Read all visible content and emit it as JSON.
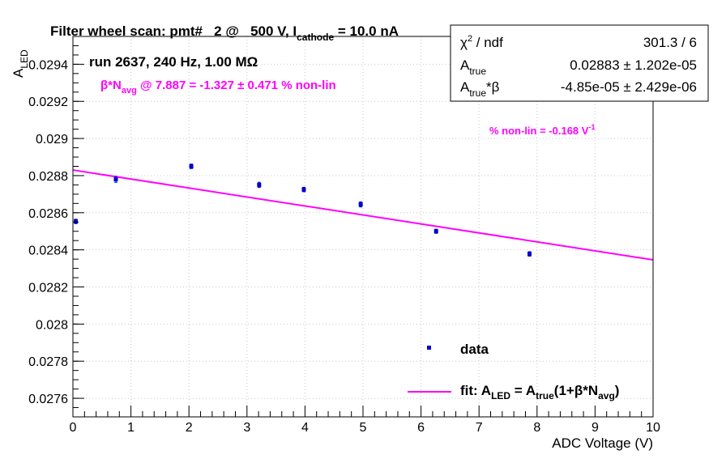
{
  "chart_data": {
    "type": "scatter",
    "title": {
      "main": "Filter wheel scan: pmt#   2 @   500 V, I",
      "sub": "cathode",
      "tail": " = 10.0 nA"
    },
    "xlabel": "ADC Voltage (V)",
    "ylabel": {
      "main": "A",
      "sub": "LED"
    },
    "xlim": [
      0,
      10
    ],
    "ylim": [
      0.0275,
      0.02955
    ],
    "xticks": [
      "0",
      "1",
      "2",
      "3",
      "4",
      "5",
      "6",
      "7",
      "8",
      "9",
      "10"
    ],
    "yticks": [
      "0.0276",
      "0.0278",
      "0.028",
      "0.0282",
      "0.0284",
      "0.0286",
      "0.0288",
      "0.029",
      "0.0292",
      "0.0294"
    ],
    "grid": true,
    "series": [
      {
        "name": "data",
        "kind": "points",
        "color": "#0000cc",
        "x": [
          0.05,
          0.74,
          2.04,
          3.21,
          3.98,
          4.96,
          6.26,
          7.87
        ],
        "y": [
          0.028553,
          0.02878,
          0.02885,
          0.02875,
          0.028725,
          0.028645,
          0.0285,
          0.028378
        ],
        "yerr": [
          1.2e-05,
          1.6e-05,
          1.2e-05,
          1.4e-05,
          1.2e-05,
          1.4e-05,
          1.1e-05,
          1.2e-05
        ]
      },
      {
        "name": "fit",
        "kind": "line",
        "color": "#ff00ff",
        "x": [
          0,
          10
        ],
        "y": [
          0.02883,
          0.028346
        ]
      }
    ],
    "annotations": {
      "run": "run 2637, 240 Hz, 1.00 MΩ",
      "beta_pre": "β*N",
      "beta_sub": "avg",
      "beta_post": " @ 7.887 = -1.327 ± 0.471 % non-lin",
      "nonlin_pre": "% non-lin = -0.168 V",
      "nonlin_sup": "-1"
    },
    "stats_box": {
      "rows": [
        {
          "label_pre": "χ",
          "label_sup": "2",
          "label_post": " / ndf",
          "value": "301.3 / 6"
        },
        {
          "label_pre": "A",
          "label_sub": "true",
          "label_post": "",
          "value": "0.02883 ± 1.202e-05"
        },
        {
          "label_pre": "A",
          "label_sub": "true",
          "label_post": "*β",
          "value": "-4.85e-05 ± 2.429e-06"
        }
      ]
    },
    "legend": {
      "position": "bottom-right",
      "data_label": "data",
      "fit_pre": "fit: A",
      "fit_sub1": "LED",
      "fit_mid": " = A",
      "fit_sub2": "true",
      "fit_post1": "(1+β*N",
      "fit_sub3": "avg",
      "fit_post2": ")"
    },
    "colors": {
      "data": "#0000cc",
      "fit": "#ff00ff",
      "annotation": "#ff00ff"
    }
  }
}
